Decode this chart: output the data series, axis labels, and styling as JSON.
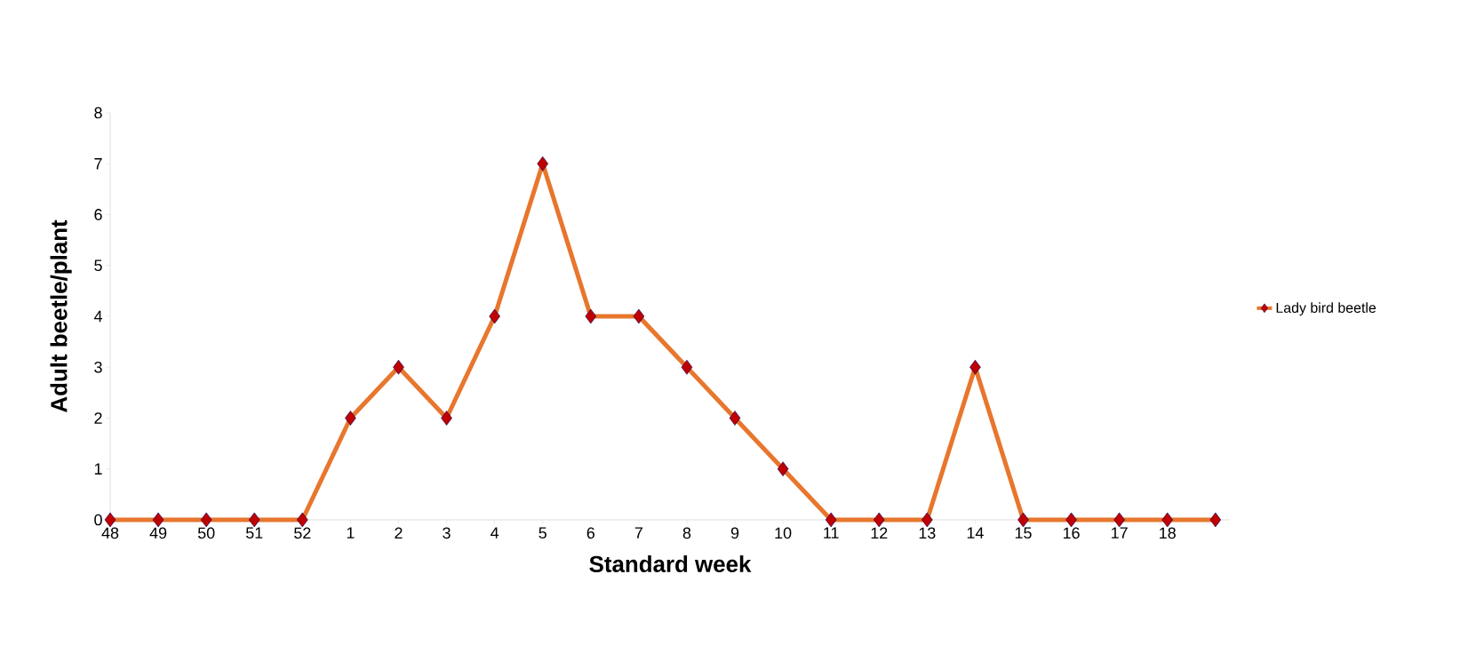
{
  "chart_data": {
    "type": "line",
    "xlabel": "Standard week",
    "ylabel": "Adult beetle/plant",
    "categories": [
      "48",
      "49",
      "50",
      "51",
      "52",
      "1",
      "2",
      "3",
      "4",
      "5",
      "6",
      "7",
      "8",
      "9",
      "10",
      "11",
      "12",
      "13",
      "14",
      "15",
      "16",
      "17",
      "18",
      null
    ],
    "series": [
      {
        "name": "Lady bird beetle",
        "color": "#e8762d",
        "colors": [
          "#c00000",
          "#c00000",
          "#c00000",
          "#c00000",
          "#c00000",
          "#c00000",
          "#c00000",
          "#c00000",
          "#c00000",
          "#c00000",
          "#c00000",
          "#c00000",
          "#c00000",
          "#c00000",
          "#c00000",
          "#c00000",
          "#c00000",
          "#c00000",
          "#c00000",
          "#c00000",
          "#c00000",
          "#c00000",
          "#c00000",
          "#c00000"
        ],
        "values": [
          0,
          0,
          0,
          0,
          0,
          2,
          3,
          2,
          4,
          7,
          4,
          4,
          3,
          2,
          1,
          0,
          0,
          0,
          3,
          0,
          0,
          0,
          0,
          0
        ]
      }
    ],
    "ylim": [
      0,
      8
    ],
    "yticks": [
      0,
      1,
      2,
      3,
      4,
      5,
      6,
      7,
      8
    ],
    "grid": false,
    "legend": "right",
    "marker": "diamond",
    "line_style": "solid"
  }
}
